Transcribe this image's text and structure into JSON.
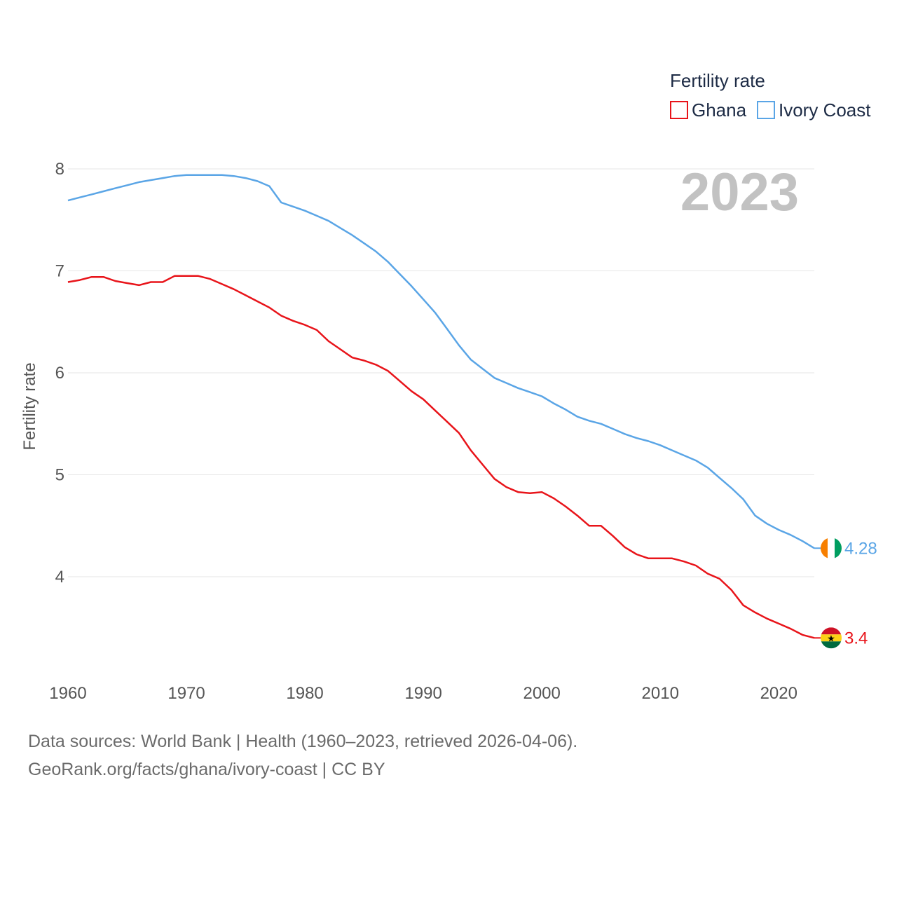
{
  "chart_data": {
    "type": "line",
    "title": "Fertility rate",
    "year_label": "2023",
    "xlabel": "",
    "ylabel": "Fertility rate",
    "xlim": [
      1960,
      2023
    ],
    "ylim": [
      3,
      8.3
    ],
    "x_ticks": [
      1960,
      1970,
      1980,
      1990,
      2000,
      2010,
      2020
    ],
    "y_ticks": [
      4,
      5,
      6,
      7,
      8
    ],
    "grid": true,
    "legend_position": "top-right",
    "series": [
      {
        "name": "Ghana",
        "color": "#e8141a",
        "end_label": "3.4",
        "flag": "ghana-flag",
        "x": [
          1960,
          1961,
          1962,
          1963,
          1964,
          1965,
          1966,
          1967,
          1968,
          1969,
          1970,
          1971,
          1972,
          1973,
          1974,
          1975,
          1976,
          1977,
          1978,
          1979,
          1980,
          1981,
          1982,
          1983,
          1984,
          1985,
          1986,
          1987,
          1988,
          1989,
          1990,
          1991,
          1992,
          1993,
          1994,
          1995,
          1996,
          1997,
          1998,
          1999,
          2000,
          2001,
          2002,
          2003,
          2004,
          2005,
          2006,
          2007,
          2008,
          2009,
          2010,
          2011,
          2012,
          2013,
          2014,
          2015,
          2016,
          2017,
          2018,
          2019,
          2020,
          2021,
          2022,
          2023
        ],
        "values": [
          6.89,
          6.91,
          6.94,
          6.94,
          6.9,
          6.88,
          6.86,
          6.89,
          6.89,
          6.95,
          6.95,
          6.95,
          6.92,
          6.87,
          6.82,
          6.76,
          6.7,
          6.64,
          6.56,
          6.51,
          6.47,
          6.42,
          6.31,
          6.23,
          6.15,
          6.12,
          6.08,
          6.02,
          5.92,
          5.82,
          5.74,
          5.63,
          5.52,
          5.41,
          5.24,
          5.1,
          4.96,
          4.88,
          4.83,
          4.82,
          4.83,
          4.77,
          4.69,
          4.6,
          4.5,
          4.5,
          4.4,
          4.29,
          4.22,
          4.18,
          4.18,
          4.18,
          4.15,
          4.11,
          4.03,
          3.98,
          3.87,
          3.72,
          3.65,
          3.59,
          3.54,
          3.49,
          3.43,
          3.4
        ]
      },
      {
        "name": "Ivory Coast",
        "color": "#5aa5e6",
        "end_label": "4.28",
        "flag": "ivory-coast-flag",
        "x": [
          1960,
          1961,
          1962,
          1963,
          1964,
          1965,
          1966,
          1967,
          1968,
          1969,
          1970,
          1971,
          1972,
          1973,
          1974,
          1975,
          1976,
          1977,
          1978,
          1979,
          1980,
          1981,
          1982,
          1983,
          1984,
          1985,
          1986,
          1987,
          1988,
          1989,
          1990,
          1991,
          1992,
          1993,
          1994,
          1995,
          1996,
          1997,
          1998,
          1999,
          2000,
          2001,
          2002,
          2003,
          2004,
          2005,
          2006,
          2007,
          2008,
          2009,
          2010,
          2011,
          2012,
          2013,
          2014,
          2015,
          2016,
          2017,
          2018,
          2019,
          2020,
          2021,
          2022,
          2023
        ],
        "values": [
          7.69,
          7.72,
          7.75,
          7.78,
          7.81,
          7.84,
          7.87,
          7.89,
          7.91,
          7.93,
          7.94,
          7.94,
          7.94,
          7.94,
          7.93,
          7.91,
          7.88,
          7.83,
          7.67,
          7.63,
          7.59,
          7.54,
          7.49,
          7.42,
          7.35,
          7.27,
          7.19,
          7.09,
          6.97,
          6.85,
          6.72,
          6.59,
          6.43,
          6.27,
          6.13,
          6.04,
          5.95,
          5.9,
          5.85,
          5.81,
          5.77,
          5.7,
          5.64,
          5.57,
          5.53,
          5.5,
          5.45,
          5.4,
          5.36,
          5.33,
          5.29,
          5.24,
          5.19,
          5.14,
          5.07,
          4.97,
          4.87,
          4.76,
          4.6,
          4.52,
          4.46,
          4.41,
          4.35,
          4.28
        ]
      }
    ],
    "sources": "Data sources: World Bank | Health (1960–2023, retrieved 2026-04-06).",
    "credit": "GeoRank.org/facts/ghana/ivory-coast | CC BY"
  }
}
